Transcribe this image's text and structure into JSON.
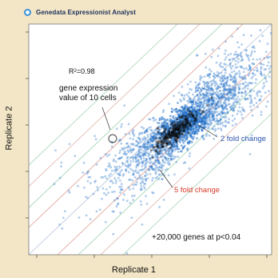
{
  "header": {
    "title": "Genedata Expressionist Analyst",
    "logo_icon": "circle-logo-icon",
    "accent_color": "#3a8fd8"
  },
  "chart_data": {
    "type": "scatter",
    "title": "",
    "xlabel": "Replicate 1",
    "ylabel": "Replicate 2",
    "log_scale": true,
    "grid": false,
    "point_color": "#1f6fc8",
    "dense_core_color": "#0a0a0a",
    "fold_lines": [
      {
        "label": "2 fold change",
        "color": "#2a55b0"
      },
      {
        "label": "5 fold change",
        "color": "#d43a2a"
      }
    ],
    "annotations": {
      "r_squared_prefix": "R",
      "r_squared_sup": "2",
      "r_squared_value": "=0.98",
      "marker_note_line1": "gene expression",
      "marker_note_line2": "value of 10 cells",
      "genes_note": "+20,000 genes at p<0.04"
    },
    "x_tick_labels": [
      "",
      "",
      "",
      "",
      ""
    ],
    "y_tick_labels": [
      "",
      "",
      "",
      "",
      ""
    ]
  }
}
